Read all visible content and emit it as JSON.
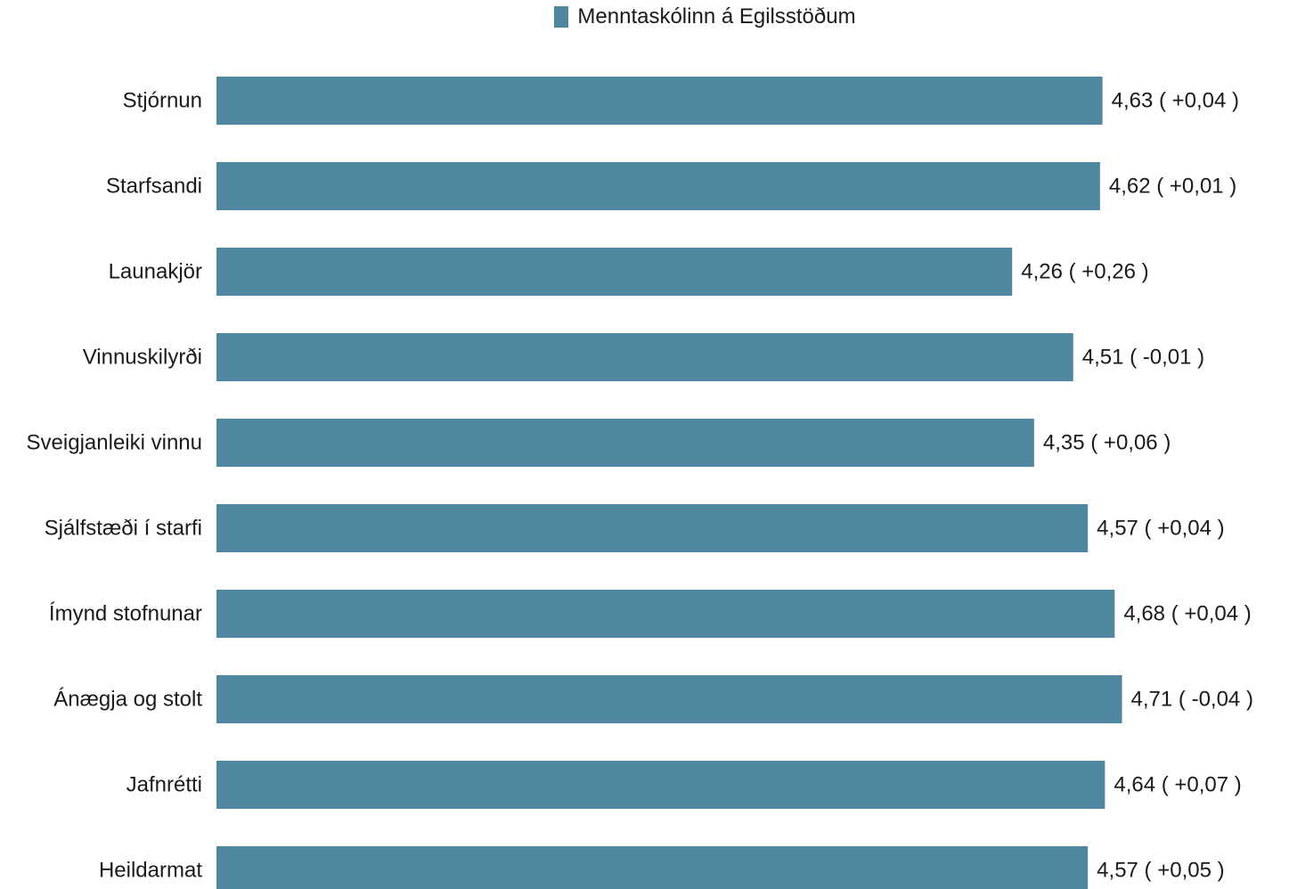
{
  "chart_data": {
    "type": "bar",
    "orientation": "horizontal",
    "legend": {
      "placement": "top-center",
      "entries": [
        {
          "name": "Menntaskólinn á Egilsstöðum",
          "color": "#4f87a1"
        }
      ]
    },
    "categories": [
      "Stjórnun",
      "Starfsandi",
      "Launakjör",
      "Vinnuskilyrði",
      "Sveigjanleiki vinnu",
      "Sjálfstæði í starfi",
      "Ímynd stofnunar",
      "Ánægja og stolt",
      "Jafnrétti",
      "Heildarmat"
    ],
    "series": [
      {
        "name": "Menntaskólinn á Egilsstöðum",
        "color": "#4f87a1",
        "values": [
          4.63,
          4.62,
          4.26,
          4.51,
          4.35,
          4.57,
          4.68,
          4.71,
          4.64,
          4.57
        ],
        "labels": [
          "4,63 ( +0,04 )",
          "4,62 ( +0,01 )",
          "4,26 ( +0,26 )",
          "4,51 ( -0,01 )",
          "4,35 ( +0,06 )",
          "4,57 ( +0,04 )",
          "4,68 ( +0,04 )",
          "4,71 ( -0,04 )",
          "4,64 ( +0,07 )",
          "4,57 ( +0,05 )"
        ]
      }
    ],
    "xlim": [
      1,
      4.71
    ],
    "grid": false,
    "title": "",
    "xlabel": "",
    "ylabel": ""
  }
}
